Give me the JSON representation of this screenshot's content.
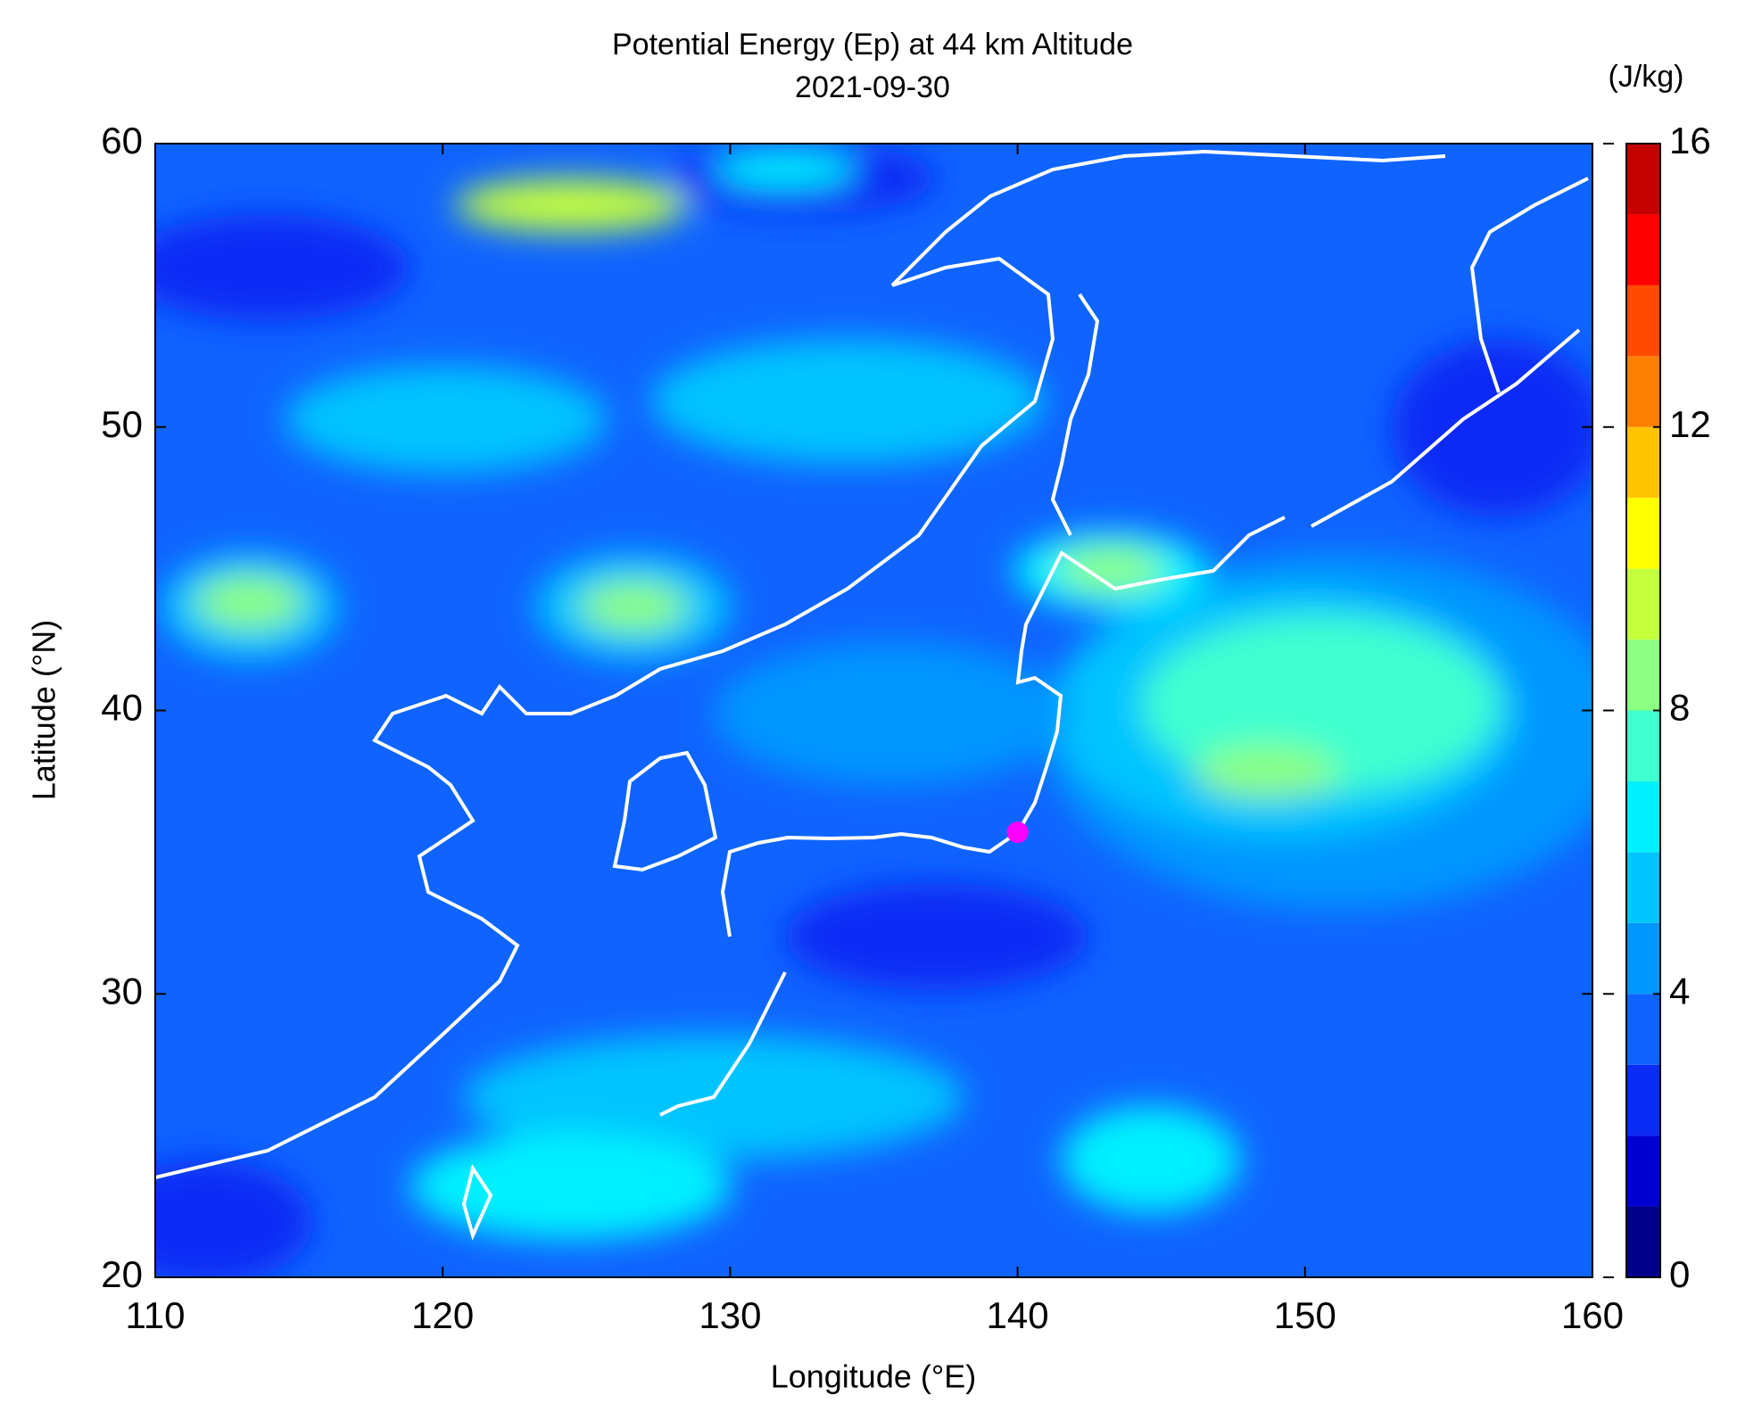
{
  "chart_data": {
    "type": "contour",
    "title": "Potential Energy (Ep) at 44 km Altitude",
    "subtitle": "2021-09-30",
    "x_label": "Longitude (°E)",
    "y_label": "Latitude (°N)",
    "xlim": [
      110,
      160
    ],
    "xticks": [
      110,
      120,
      130,
      140,
      150,
      160
    ],
    "ylim": [
      20,
      60
    ],
    "yticks": [
      20,
      30,
      40,
      50,
      60
    ],
    "colorbar": {
      "label": "(J/kg)",
      "lim": [
        0,
        16
      ],
      "ticks": [
        0,
        4,
        8,
        12,
        16
      ],
      "levels": [
        0,
        1,
        2,
        3,
        4,
        5,
        6,
        7,
        8,
        9,
        10,
        11,
        12,
        13,
        14,
        15,
        16
      ],
      "colors": [
        "#00008c",
        "#0000d2",
        "#0a2cf5",
        "#0f64ff",
        "#0096ff",
        "#00c4ff",
        "#00f0ff",
        "#40ffd0",
        "#8cff82",
        "#c4ff3c",
        "#ffff00",
        "#ffc400",
        "#ff8000",
        "#ff4a00",
        "#ff0000",
        "#c40000",
        "#7a0000"
      ]
    },
    "marker": {
      "x": 140,
      "y": 35.7,
      "color": "#ff00ff"
    }
  }
}
